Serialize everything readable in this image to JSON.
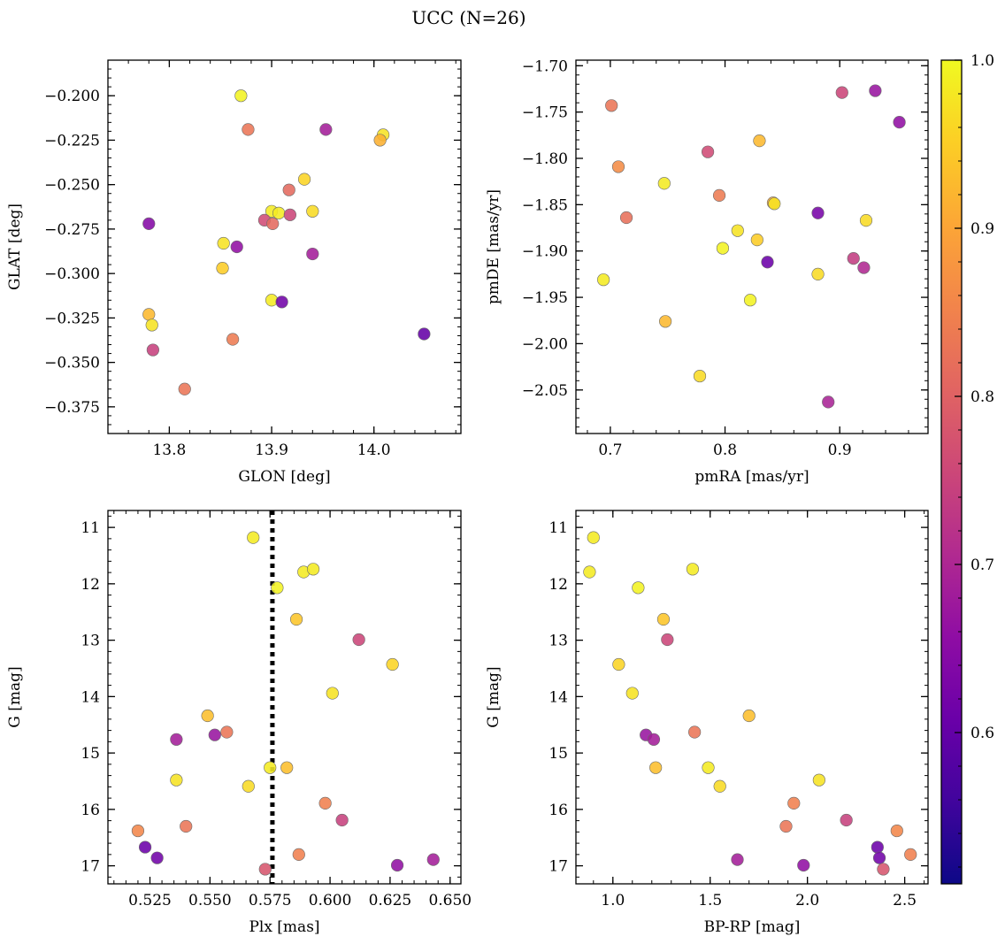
{
  "suptitle": "UCC (N=26)",
  "colorbar": {
    "min": 0.51,
    "max": 1.0,
    "ticks": [
      0.6,
      0.7,
      0.8,
      0.9,
      1.0
    ],
    "tick_labels": [
      "0.6",
      "0.7",
      "0.8",
      "0.9",
      "1.0"
    ],
    "colormap": "plasma"
  },
  "chart_data": [
    {
      "type": "scatter",
      "xlabel": "GLON [deg]",
      "ylabel": "GLAT [deg]",
      "xlim": [
        13.74,
        14.085
      ],
      "ylim": [
        -0.39,
        -0.18
      ],
      "y_inverted": false,
      "xticks": [
        13.8,
        13.9,
        14.0
      ],
      "xtick_labels": [
        "13.8",
        "13.9",
        "14.0"
      ],
      "yticks": [
        -0.2,
        -0.225,
        -0.25,
        -0.275,
        -0.3,
        -0.325,
        -0.35,
        -0.375
      ],
      "ytick_labels": [
        "−0.200",
        "−0.225",
        "−0.250",
        "−0.275",
        "−0.300",
        "−0.325",
        "−0.350",
        "−0.375"
      ],
      "points": [
        {
          "x": 13.87,
          "y": -0.2,
          "c": 0.99
        },
        {
          "x": 13.877,
          "y": -0.219,
          "c": 0.8
        },
        {
          "x": 13.953,
          "y": -0.219,
          "c": 0.63
        },
        {
          "x": 14.009,
          "y": -0.222,
          "c": 0.97
        },
        {
          "x": 14.006,
          "y": -0.225,
          "c": 0.9
        },
        {
          "x": 13.932,
          "y": -0.247,
          "c": 0.95
        },
        {
          "x": 13.917,
          "y": -0.253,
          "c": 0.78
        },
        {
          "x": 13.9,
          "y": -0.265,
          "c": 0.98
        },
        {
          "x": 13.907,
          "y": -0.266,
          "c": 0.98
        },
        {
          "x": 13.94,
          "y": -0.265,
          "c": 0.96
        },
        {
          "x": 13.918,
          "y": -0.267,
          "c": 0.71
        },
        {
          "x": 13.893,
          "y": -0.27,
          "c": 0.72
        },
        {
          "x": 13.901,
          "y": -0.272,
          "c": 0.78
        },
        {
          "x": 13.78,
          "y": -0.272,
          "c": 0.58
        },
        {
          "x": 13.853,
          "y": -0.283,
          "c": 0.97
        },
        {
          "x": 13.866,
          "y": -0.285,
          "c": 0.6
        },
        {
          "x": 13.94,
          "y": -0.289,
          "c": 0.63
        },
        {
          "x": 13.852,
          "y": -0.297,
          "c": 0.94
        },
        {
          "x": 13.9,
          "y": -0.315,
          "c": 0.98
        },
        {
          "x": 13.91,
          "y": -0.316,
          "c": 0.55
        },
        {
          "x": 13.78,
          "y": -0.323,
          "c": 0.91
        },
        {
          "x": 13.783,
          "y": -0.329,
          "c": 0.97
        },
        {
          "x": 13.862,
          "y": -0.337,
          "c": 0.81
        },
        {
          "x": 14.049,
          "y": -0.334,
          "c": 0.53
        },
        {
          "x": 13.784,
          "y": -0.343,
          "c": 0.7
        },
        {
          "x": 13.815,
          "y": -0.365,
          "c": 0.8
        }
      ]
    },
    {
      "type": "scatter",
      "xlabel": "pmRA [mas/yr]",
      "ylabel": "pmDE [mas/yr]",
      "xlim": [
        0.67,
        0.977
      ],
      "ylim": [
        -2.097,
        -1.694
      ],
      "y_inverted": false,
      "xticks": [
        0.7,
        0.8,
        0.9
      ],
      "xtick_labels": [
        "0.7",
        "0.8",
        "0.9"
      ],
      "yticks": [
        -1.7,
        -1.75,
        -1.8,
        -1.85,
        -1.9,
        -1.95,
        -2.0,
        -2.05
      ],
      "ytick_labels": [
        "−1.70",
        "−1.75",
        "−1.80",
        "−1.85",
        "−1.90",
        "−1.95",
        "−2.00",
        "−2.05"
      ],
      "points": [
        {
          "x": 0.931,
          "y": -1.727,
          "c": 0.61
        },
        {
          "x": 0.902,
          "y": -1.729,
          "c": 0.71
        },
        {
          "x": 0.701,
          "y": -1.743,
          "c": 0.8
        },
        {
          "x": 0.952,
          "y": -1.761,
          "c": 0.6
        },
        {
          "x": 0.83,
          "y": -1.781,
          "c": 0.91
        },
        {
          "x": 0.785,
          "y": -1.793,
          "c": 0.72
        },
        {
          "x": 0.707,
          "y": -1.809,
          "c": 0.84
        },
        {
          "x": 0.747,
          "y": -1.827,
          "c": 0.98
        },
        {
          "x": 0.795,
          "y": -1.84,
          "c": 0.81
        },
        {
          "x": 0.842,
          "y": -1.848,
          "c": 0.89
        },
        {
          "x": 0.843,
          "y": -1.849,
          "c": 0.97
        },
        {
          "x": 0.881,
          "y": -1.859,
          "c": 0.56
        },
        {
          "x": 0.714,
          "y": -1.864,
          "c": 0.79
        },
        {
          "x": 0.923,
          "y": -1.867,
          "c": 0.96
        },
        {
          "x": 0.811,
          "y": -1.878,
          "c": 0.97
        },
        {
          "x": 0.828,
          "y": -1.888,
          "c": 0.94
        },
        {
          "x": 0.798,
          "y": -1.897,
          "c": 0.99
        },
        {
          "x": 0.912,
          "y": -1.908,
          "c": 0.69
        },
        {
          "x": 0.837,
          "y": -1.912,
          "c": 0.54
        },
        {
          "x": 0.921,
          "y": -1.918,
          "c": 0.65
        },
        {
          "x": 0.881,
          "y": -1.925,
          "c": 0.96
        },
        {
          "x": 0.694,
          "y": -1.931,
          "c": 0.98
        },
        {
          "x": 0.822,
          "y": -1.953,
          "c": 0.99
        },
        {
          "x": 0.748,
          "y": -1.976,
          "c": 0.91
        },
        {
          "x": 0.778,
          "y": -2.035,
          "c": 0.96
        },
        {
          "x": 0.89,
          "y": -2.063,
          "c": 0.64
        }
      ]
    },
    {
      "type": "scatter",
      "xlabel": "Plx [mas]",
      "ylabel": "G [mag]",
      "xlim": [
        0.5075,
        0.6545
      ],
      "ylim": [
        10.7,
        17.32
      ],
      "y_inverted": true,
      "vline": 0.576,
      "xticks": [
        0.525,
        0.55,
        0.575,
        0.6,
        0.625,
        0.65
      ],
      "xtick_labels": [
        "0.525",
        "0.550",
        "0.575",
        "0.600",
        "0.625",
        "0.650"
      ],
      "yticks": [
        11,
        12,
        13,
        14,
        15,
        16,
        17
      ],
      "ytick_labels": [
        "11",
        "12",
        "13",
        "14",
        "15",
        "16",
        "17"
      ],
      "points": [
        {
          "x": 0.568,
          "y": 11.18,
          "c": 0.98
        },
        {
          "x": 0.589,
          "y": 11.79,
          "c": 0.98
        },
        {
          "x": 0.593,
          "y": 11.74,
          "c": 0.98
        },
        {
          "x": 0.578,
          "y": 12.07,
          "c": 0.99
        },
        {
          "x": 0.586,
          "y": 12.63,
          "c": 0.93
        },
        {
          "x": 0.612,
          "y": 12.99,
          "c": 0.71
        },
        {
          "x": 0.626,
          "y": 13.43,
          "c": 0.95
        },
        {
          "x": 0.601,
          "y": 13.94,
          "c": 0.97
        },
        {
          "x": 0.549,
          "y": 14.34,
          "c": 0.92
        },
        {
          "x": 0.557,
          "y": 14.63,
          "c": 0.8
        },
        {
          "x": 0.552,
          "y": 14.68,
          "c": 0.61
        },
        {
          "x": 0.536,
          "y": 14.76,
          "c": 0.63
        },
        {
          "x": 0.575,
          "y": 15.26,
          "c": 0.98
        },
        {
          "x": 0.582,
          "y": 15.26,
          "c": 0.92
        },
        {
          "x": 0.536,
          "y": 15.48,
          "c": 0.97
        },
        {
          "x": 0.566,
          "y": 15.59,
          "c": 0.96
        },
        {
          "x": 0.598,
          "y": 15.89,
          "c": 0.82
        },
        {
          "x": 0.605,
          "y": 16.19,
          "c": 0.7
        },
        {
          "x": 0.54,
          "y": 16.3,
          "c": 0.8
        },
        {
          "x": 0.52,
          "y": 16.38,
          "c": 0.83
        },
        {
          "x": 0.523,
          "y": 16.67,
          "c": 0.54
        },
        {
          "x": 0.587,
          "y": 16.8,
          "c": 0.82
        },
        {
          "x": 0.528,
          "y": 16.86,
          "c": 0.55
        },
        {
          "x": 0.643,
          "y": 16.89,
          "c": 0.63
        },
        {
          "x": 0.628,
          "y": 16.99,
          "c": 0.6
        },
        {
          "x": 0.573,
          "y": 17.06,
          "c": 0.74
        }
      ]
    },
    {
      "type": "scatter",
      "xlabel": "BP-RP [mag]",
      "ylabel": "G [mag]",
      "xlim": [
        0.81,
        2.62
      ],
      "ylim": [
        10.7,
        17.32
      ],
      "y_inverted": true,
      "xticks": [
        1.0,
        1.5,
        2.0,
        2.5
      ],
      "xtick_labels": [
        "1.0",
        "1.5",
        "2.0",
        "2.5"
      ],
      "yticks": [
        11,
        12,
        13,
        14,
        15,
        16,
        17
      ],
      "ytick_labels": [
        "11",
        "12",
        "13",
        "14",
        "15",
        "16",
        "17"
      ],
      "points": [
        {
          "x": 0.9,
          "y": 11.18,
          "c": 0.98
        },
        {
          "x": 0.88,
          "y": 11.79,
          "c": 0.98
        },
        {
          "x": 1.41,
          "y": 11.74,
          "c": 0.98
        },
        {
          "x": 1.13,
          "y": 12.07,
          "c": 0.99
        },
        {
          "x": 1.26,
          "y": 12.63,
          "c": 0.93
        },
        {
          "x": 1.28,
          "y": 12.99,
          "c": 0.71
        },
        {
          "x": 1.03,
          "y": 13.43,
          "c": 0.95
        },
        {
          "x": 1.1,
          "y": 13.94,
          "c": 0.97
        },
        {
          "x": 1.7,
          "y": 14.34,
          "c": 0.92
        },
        {
          "x": 1.42,
          "y": 14.63,
          "c": 0.8
        },
        {
          "x": 1.17,
          "y": 14.68,
          "c": 0.61
        },
        {
          "x": 1.21,
          "y": 14.76,
          "c": 0.63
        },
        {
          "x": 1.49,
          "y": 15.26,
          "c": 0.98
        },
        {
          "x": 1.22,
          "y": 15.26,
          "c": 0.92
        },
        {
          "x": 2.06,
          "y": 15.48,
          "c": 0.97
        },
        {
          "x": 1.55,
          "y": 15.59,
          "c": 0.96
        },
        {
          "x": 1.93,
          "y": 15.89,
          "c": 0.82
        },
        {
          "x": 2.2,
          "y": 16.19,
          "c": 0.7
        },
        {
          "x": 1.89,
          "y": 16.3,
          "c": 0.8
        },
        {
          "x": 2.46,
          "y": 16.38,
          "c": 0.83
        },
        {
          "x": 2.36,
          "y": 16.67,
          "c": 0.54
        },
        {
          "x": 2.53,
          "y": 16.8,
          "c": 0.82
        },
        {
          "x": 2.37,
          "y": 16.86,
          "c": 0.55
        },
        {
          "x": 1.64,
          "y": 16.89,
          "c": 0.63
        },
        {
          "x": 1.98,
          "y": 16.99,
          "c": 0.6
        },
        {
          "x": 2.39,
          "y": 17.06,
          "c": 0.74
        }
      ]
    }
  ]
}
